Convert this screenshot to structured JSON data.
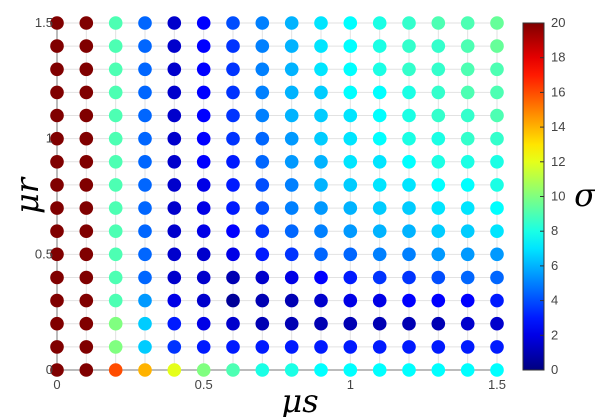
{
  "chart_data": {
    "type": "scatter",
    "title": "",
    "xlabel": "μs",
    "ylabel": "μr",
    "colorbar_label": "σ",
    "xlim": [
      0,
      1.5
    ],
    "ylim": [
      0,
      1.5
    ],
    "xticks": [
      0,
      0.5,
      1,
      1.5
    ],
    "yticks": [
      0,
      0.5,
      1,
      1.5
    ],
    "xtick_labels": [
      "0",
      "0.5",
      "1",
      "1.5"
    ],
    "ytick_labels": [
      "0",
      "0.5",
      "1",
      "1.5"
    ],
    "colorbar_range": [
      0,
      20
    ],
    "colorbar_ticks": [
      0,
      2,
      4,
      6,
      8,
      10,
      12,
      14,
      16,
      18,
      20
    ],
    "colorbar_tick_labels": [
      "0",
      "2",
      "4",
      "6",
      "8",
      "10",
      "12",
      "14",
      "16",
      "18",
      "20"
    ],
    "colormap": "jet",
    "grid": true,
    "mu_s": [
      0,
      0.1,
      0.2,
      0.3,
      0.4,
      0.5,
      0.6,
      0.7,
      0.8,
      0.9,
      1.0,
      1.1,
      1.2,
      1.3,
      1.4,
      1.5
    ],
    "mu_r": [
      0,
      0.1,
      0.2,
      0.3,
      0.4,
      0.5,
      0.6,
      0.7,
      0.8,
      0.9,
      1.0,
      1.1,
      1.2,
      1.3,
      1.4,
      1.5
    ],
    "sigma": [
      [
        20,
        20,
        16,
        14,
        12,
        10,
        9,
        8,
        8,
        7.5,
        7.5,
        7.5,
        7.5,
        7.5,
        7.5,
        7.5
      ],
      [
        20,
        20,
        10,
        6.5,
        3.5,
        3,
        3,
        3,
        3,
        3,
        3,
        3,
        3,
        3,
        3,
        3
      ],
      [
        20,
        20,
        10,
        6.5,
        3,
        2,
        1.5,
        1,
        1,
        1,
        1,
        1,
        1,
        1,
        1.5,
        1.5
      ],
      [
        20,
        20,
        9,
        5.5,
        2,
        1.5,
        0.5,
        1,
        1,
        1.5,
        2,
        2,
        2.5,
        2.5,
        2.5,
        3
      ],
      [
        20,
        20,
        9,
        4.5,
        1.5,
        1.5,
        1,
        1.5,
        2,
        2.5,
        3,
        3.5,
        3.5,
        4,
        4.5,
        4.5
      ],
      [
        20,
        20,
        9,
        4.5,
        1.5,
        1.5,
        2,
        3,
        3.5,
        4.5,
        4.5,
        5,
        5,
        5.5,
        5.5,
        5.5
      ],
      [
        20,
        20,
        9,
        4.5,
        1.5,
        2,
        2.5,
        3.5,
        4.5,
        5,
        5.5,
        6,
        6,
        6.5,
        6.5,
        7
      ],
      [
        20,
        20,
        9,
        4.5,
        1.5,
        2,
        3,
        4,
        5,
        5.5,
        6,
        6.5,
        6.5,
        7,
        7,
        7.5
      ],
      [
        20,
        20,
        9,
        4.5,
        1.5,
        2,
        3,
        4,
        5,
        6,
        6.5,
        7,
        7,
        7.5,
        7.5,
        8
      ],
      [
        20,
        20,
        9,
        4.5,
        1.5,
        2.5,
        3,
        4.5,
        5.5,
        6,
        7,
        7,
        7.5,
        8,
        8,
        8
      ],
      [
        20,
        20,
        9,
        4.5,
        1.5,
        2.5,
        3.5,
        4.5,
        5.5,
        6.5,
        7,
        7.5,
        8,
        8,
        8.5,
        8.5
      ],
      [
        20,
        20,
        9,
        4.5,
        1.5,
        2.5,
        3.5,
        5,
        6,
        6.5,
        7,
        7.5,
        8,
        8.5,
        8.5,
        9
      ],
      [
        20,
        20,
        9,
        4.5,
        1.5,
        2.5,
        3.5,
        5,
        6,
        6.5,
        7.5,
        7.5,
        8,
        8.5,
        9,
        9
      ],
      [
        20,
        20,
        9,
        4.5,
        1.5,
        2.5,
        3.5,
        5,
        6,
        7,
        7.5,
        8,
        8.5,
        8.5,
        9,
        9
      ],
      [
        20,
        20,
        9,
        4.5,
        1.5,
        2.5,
        3.5,
        5,
        6,
        7,
        7.5,
        8,
        8.5,
        8.5,
        9,
        9.5
      ],
      [
        20,
        20,
        9,
        4.5,
        1.5,
        2.5,
        4,
        5,
        6,
        7,
        7.5,
        8,
        8.5,
        9,
        9,
        9.5
      ]
    ]
  }
}
